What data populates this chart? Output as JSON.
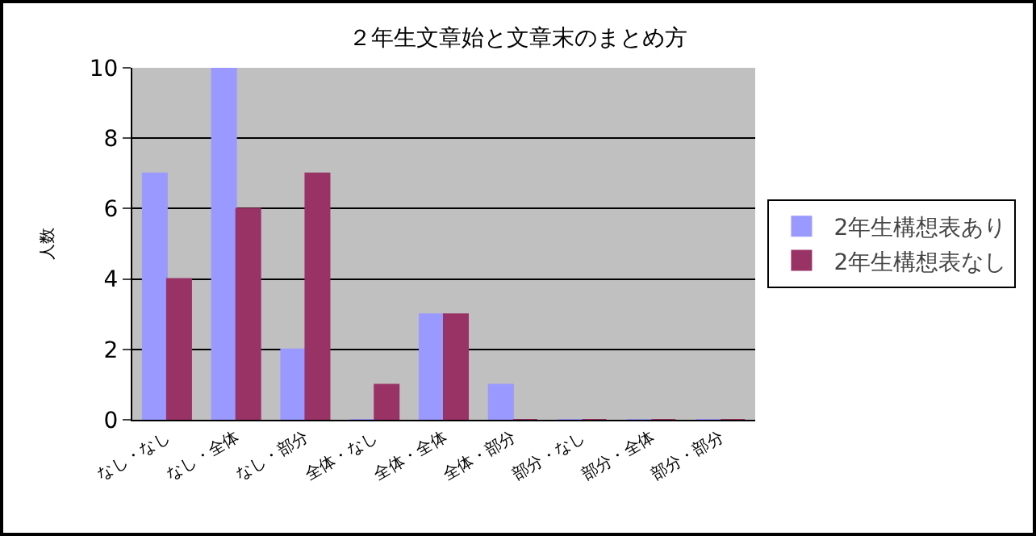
{
  "chart_data": {
    "type": "bar",
    "title": "２年生文章始と文章末のまとめ方",
    "ylabel": "人数",
    "categories": [
      "なし・なし",
      "なし・全体",
      "なし・部分",
      "全体・なし",
      "全体・全体",
      "全体・部分",
      "部分・なし",
      "部分・全体",
      "部分・部分"
    ],
    "series": [
      {
        "name": "2年生構想表あり",
        "color": "#9999ff",
        "values": [
          7,
          10,
          2,
          0,
          3,
          1,
          0,
          0,
          0
        ]
      },
      {
        "name": "2年生構想表なし",
        "color": "#993366",
        "values": [
          4,
          6,
          7,
          1,
          3,
          0,
          0,
          0,
          0
        ]
      }
    ],
    "ylim": [
      0,
      10
    ],
    "yticks": [
      0,
      2,
      4,
      6,
      8,
      10
    ],
    "grid": "y",
    "legend": "right"
  }
}
